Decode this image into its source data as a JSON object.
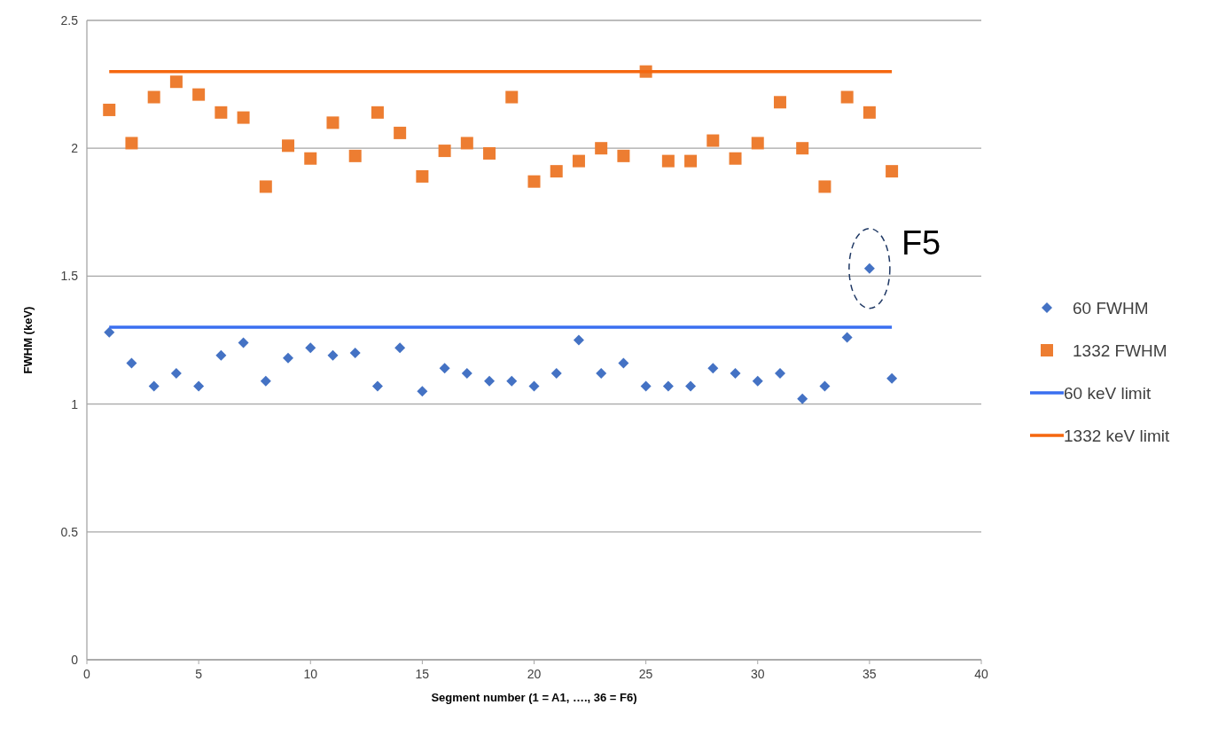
{
  "chart_data": {
    "type": "scatter",
    "xlabel": "Segment number (1 = A1, …., 36 = F6)",
    "ylabel": "FWHM (keV)",
    "x": [
      1,
      2,
      3,
      4,
      5,
      6,
      7,
      8,
      9,
      10,
      11,
      12,
      13,
      14,
      15,
      16,
      17,
      18,
      19,
      20,
      21,
      22,
      23,
      24,
      25,
      26,
      27,
      28,
      29,
      30,
      31,
      32,
      33,
      34,
      35,
      36
    ],
    "xlim": [
      0,
      40
    ],
    "xticks": [
      0,
      5,
      10,
      15,
      20,
      25,
      30,
      35,
      40
    ],
    "ylim": [
      0,
      2.5
    ],
    "yticks": [
      0,
      0.5,
      1,
      1.5,
      2,
      2.5
    ],
    "grid": "y",
    "legend": "right",
    "series": [
      {
        "name": "60 FWHM",
        "color": "#4472c4",
        "marker": "diamond",
        "values": [
          1.28,
          1.16,
          1.07,
          1.12,
          1.07,
          1.19,
          1.24,
          1.09,
          1.18,
          1.22,
          1.19,
          1.2,
          1.07,
          1.22,
          1.05,
          1.14,
          1.12,
          1.09,
          1.09,
          1.07,
          1.12,
          1.25,
          1.12,
          1.16,
          1.07,
          1.07,
          1.07,
          1.14,
          1.12,
          1.09,
          1.12,
          1.02,
          1.07,
          1.26,
          1.53,
          1.1
        ]
      },
      {
        "name": "1332 FWHM",
        "color": "#ed7d31",
        "marker": "square",
        "values": [
          2.15,
          2.02,
          2.2,
          2.26,
          2.21,
          2.14,
          2.12,
          1.85,
          2.01,
          1.96,
          2.1,
          1.97,
          2.14,
          2.06,
          1.89,
          1.99,
          2.02,
          1.98,
          2.2,
          1.87,
          1.91,
          1.95,
          2,
          1.97,
          2.3,
          1.95,
          1.95,
          2.03,
          1.96,
          2.02,
          2.18,
          2,
          1.85,
          2.2,
          2.14,
          1.91
        ]
      },
      {
        "name": "60 keV limit",
        "type": "line",
        "color": "#3a6ff0",
        "values": [
          1.3,
          1.3,
          1.3,
          1.3,
          1.3,
          1.3,
          1.3,
          1.3,
          1.3,
          1.3,
          1.3,
          1.3,
          1.3,
          1.3,
          1.3,
          1.3,
          1.3,
          1.3,
          1.3,
          1.3,
          1.3,
          1.3,
          1.3,
          1.3,
          1.3,
          1.3,
          1.3,
          1.3,
          1.3,
          1.3,
          1.3,
          1.3,
          1.3,
          1.3,
          1.3,
          1.3
        ]
      },
      {
        "name": "1332 keV limit",
        "type": "line",
        "color": "#f5670f",
        "values": [
          2.3,
          2.3,
          2.3,
          2.3,
          2.3,
          2.3,
          2.3,
          2.3,
          2.3,
          2.3,
          2.3,
          2.3,
          2.3,
          2.3,
          2.3,
          2.3,
          2.3,
          2.3,
          2.3,
          2.3,
          2.3,
          2.3,
          2.3,
          2.3,
          2.3,
          2.3,
          2.3,
          2.3,
          2.3,
          2.3,
          2.3,
          2.3,
          2.3,
          2.3,
          2.3,
          2.3
        ]
      }
    ],
    "annotations": [
      {
        "text": "F5",
        "x": 35,
        "y": 1.53
      }
    ]
  }
}
